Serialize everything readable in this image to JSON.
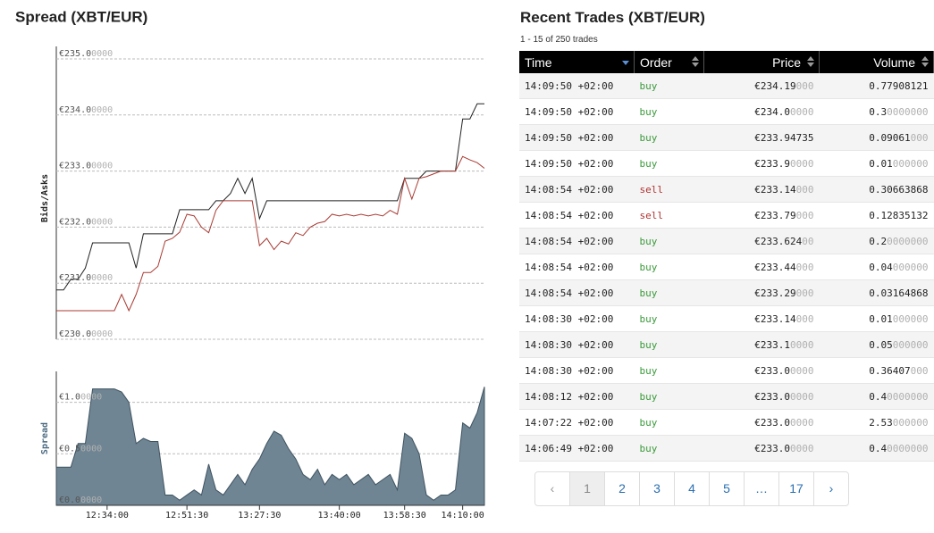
{
  "chart_data": [
    {
      "type": "line",
      "title": "Spread (XBT/EUR)",
      "ylabel": "Bids/Asks",
      "ylim": [
        230,
        235
      ],
      "yticks": [
        {
          "value": 230,
          "label": "€230.00000"
        },
        {
          "value": 231,
          "label": "€231.00000"
        },
        {
          "value": 232,
          "label": "€232.00000"
        },
        {
          "value": 233,
          "label": "€233.00000"
        },
        {
          "value": 234,
          "label": "€234.00000"
        },
        {
          "value": 235,
          "label": "€235.00000"
        }
      ],
      "grid": true,
      "series": [
        {
          "color": "#222222",
          "values": [
            230.88,
            230.88,
            231.07,
            231.07,
            231.27,
            231.72,
            231.72,
            231.72,
            231.72,
            231.72,
            231.72,
            231.27,
            231.88,
            231.88,
            231.88,
            231.88,
            231.88,
            232.31,
            232.31,
            232.31,
            232.31,
            232.31,
            232.47,
            232.47,
            232.6,
            232.87,
            232.6,
            232.87,
            232.15,
            232.47,
            232.47,
            232.47,
            232.47,
            232.47,
            232.47,
            232.47,
            232.47,
            232.47,
            232.47,
            232.47,
            232.47,
            232.47,
            232.47,
            232.47,
            232.47,
            232.47,
            232.47,
            232.47,
            232.87,
            232.87,
            232.87,
            233.0,
            233.0,
            233.0,
            233.0,
            233.0,
            233.93,
            233.93,
            234.2,
            234.2
          ]
        },
        {
          "color": "#a83a32",
          "values": [
            230.51,
            230.51,
            230.51,
            230.51,
            230.51,
            230.51,
            230.51,
            230.51,
            230.51,
            230.8,
            230.51,
            230.8,
            231.19,
            231.19,
            231.3,
            231.75,
            231.8,
            231.91,
            232.23,
            232.2,
            232.0,
            231.9,
            232.3,
            232.47,
            232.47,
            232.47,
            232.47,
            232.47,
            231.67,
            231.8,
            231.6,
            231.75,
            231.7,
            231.9,
            231.85,
            232.0,
            232.07,
            232.1,
            232.23,
            232.2,
            232.23,
            232.2,
            232.23,
            232.2,
            232.23,
            232.2,
            232.3,
            232.23,
            232.87,
            232.5,
            232.87,
            232.9,
            232.95,
            233.0,
            233.0,
            233.0,
            233.26,
            233.2,
            233.15,
            233.05
          ]
        }
      ]
    },
    {
      "type": "area",
      "ylabel": "Spread",
      "color": "#6f8593",
      "line_color": "#3f5360",
      "ylim": [
        0,
        1.3
      ],
      "yticks": [
        {
          "value": 0,
          "label": "€0.00000"
        },
        {
          "value": 0.5,
          "label": "€0.50000"
        },
        {
          "value": 1,
          "label": "€1.00000"
        }
      ],
      "grid": true,
      "categories": [
        null,
        null,
        null,
        null,
        null,
        null,
        null,
        "12:34:00",
        null,
        null,
        null,
        null,
        null,
        null,
        null,
        null,
        null,
        null,
        "12:51:30",
        null,
        null,
        null,
        null,
        null,
        null,
        null,
        null,
        null,
        "13:27:30",
        null,
        null,
        null,
        null,
        null,
        null,
        null,
        null,
        null,
        null,
        "13:40:00",
        null,
        null,
        null,
        null,
        null,
        null,
        null,
        null,
        "13:58:30",
        null,
        null,
        null,
        null,
        null,
        null,
        null,
        "14:10:00",
        null,
        null,
        null
      ],
      "values": [
        0.37,
        0.37,
        0.37,
        0.6,
        0.6,
        1.13,
        1.13,
        1.13,
        1.13,
        1.1,
        1.0,
        0.6,
        0.65,
        0.62,
        0.62,
        0.1,
        0.1,
        0.05,
        0.1,
        0.15,
        0.1,
        0.4,
        0.15,
        0.1,
        0.2,
        0.3,
        0.2,
        0.35,
        0.45,
        0.6,
        0.72,
        0.68,
        0.55,
        0.45,
        0.3,
        0.25,
        0.35,
        0.2,
        0.3,
        0.25,
        0.3,
        0.2,
        0.25,
        0.3,
        0.2,
        0.25,
        0.3,
        0.15,
        0.7,
        0.65,
        0.5,
        0.1,
        0.05,
        0.1,
        0.1,
        0.15,
        0.8,
        0.75,
        0.9,
        1.15
      ]
    }
  ],
  "trades": {
    "title": "Recent Trades (XBT/EUR)",
    "subtitle": "1 - 15 of 250 trades",
    "headers": [
      "Time",
      "Order",
      "Price",
      "Volume"
    ],
    "rows": [
      [
        "14:09:50 +02:00",
        "buy",
        "€234.19000",
        "0.77908121"
      ],
      [
        "14:09:50 +02:00",
        "buy",
        "€234.00000",
        "0.30000000"
      ],
      [
        "14:09:50 +02:00",
        "buy",
        "€233.94735",
        "0.09061000"
      ],
      [
        "14:09:50 +02:00",
        "buy",
        "€233.90000",
        "0.01000000"
      ],
      [
        "14:08:54 +02:00",
        "sell",
        "€233.14000",
        "0.30663868"
      ],
      [
        "14:08:54 +02:00",
        "sell",
        "€233.79000",
        "0.12835132"
      ],
      [
        "14:08:54 +02:00",
        "buy",
        "€233.62400",
        "0.20000000"
      ],
      [
        "14:08:54 +02:00",
        "buy",
        "€233.44000",
        "0.04000000"
      ],
      [
        "14:08:54 +02:00",
        "buy",
        "€233.29000",
        "0.03164868"
      ],
      [
        "14:08:30 +02:00",
        "buy",
        "€233.14000",
        "0.01000000"
      ],
      [
        "14:08:30 +02:00",
        "buy",
        "€233.10000",
        "0.05000000"
      ],
      [
        "14:08:30 +02:00",
        "buy",
        "€233.00000",
        "0.36407000"
      ],
      [
        "14:08:12 +02:00",
        "buy",
        "€233.00000",
        "0.40000000"
      ],
      [
        "14:07:22 +02:00",
        "buy",
        "€233.00000",
        "2.53000000"
      ],
      [
        "14:06:49 +02:00",
        "buy",
        "€233.00000",
        "0.40000000"
      ]
    ],
    "pagination": [
      "‹",
      "1",
      "2",
      "3",
      "4",
      "5",
      "…",
      "17",
      "›"
    ]
  }
}
